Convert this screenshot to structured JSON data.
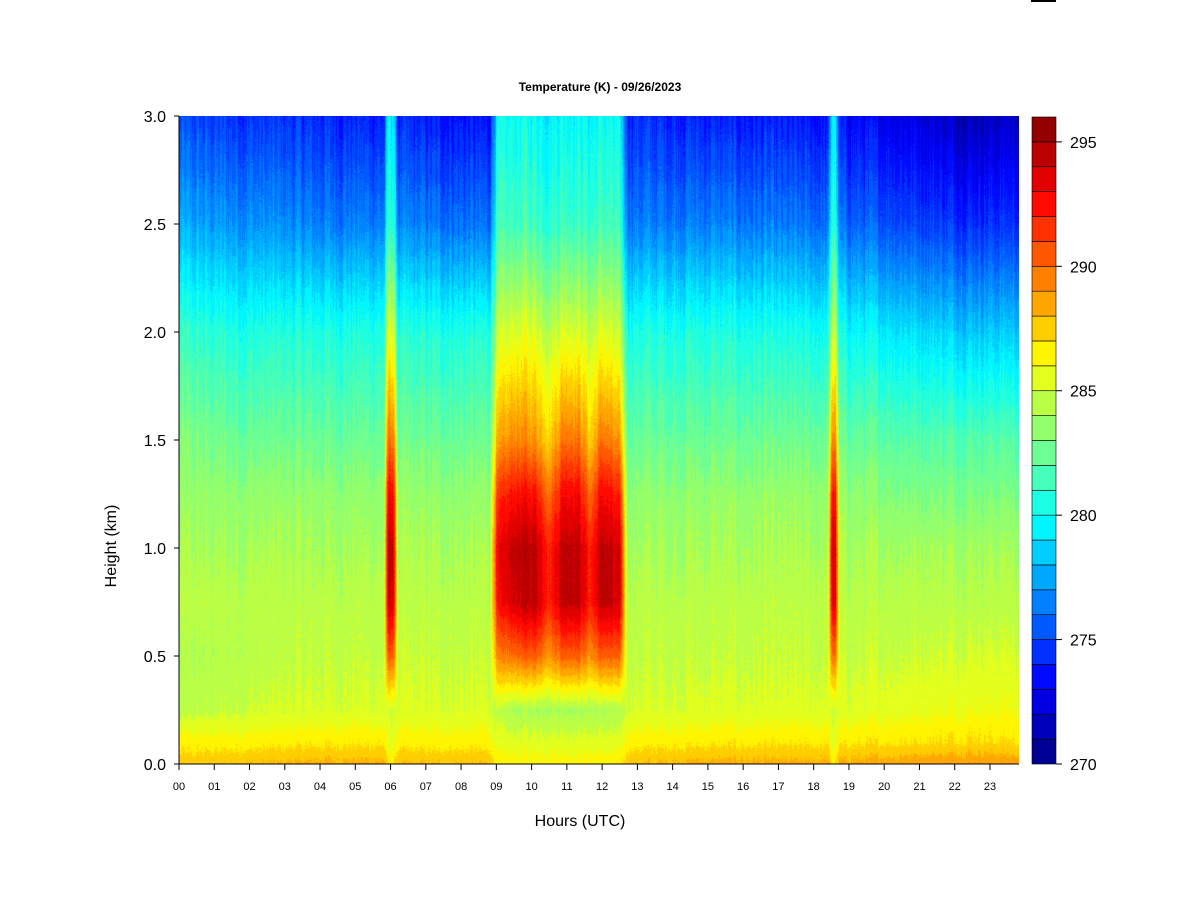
{
  "chart_data": {
    "type": "heatmap",
    "title": "Temperature (K) - 09/26/2023",
    "xlabel": "Hours (UTC)",
    "ylabel": "Height (km)",
    "xlim": [
      0,
      23.83
    ],
    "ylim": [
      0,
      3.0
    ],
    "x_ticks": [
      "00",
      "01",
      "02",
      "03",
      "04",
      "05",
      "06",
      "07",
      "08",
      "09",
      "10",
      "11",
      "12",
      "13",
      "14",
      "15",
      "16",
      "17",
      "18",
      "19",
      "20",
      "21",
      "22",
      "23"
    ],
    "y_ticks": [
      "0.0",
      "0.5",
      "1.0",
      "1.5",
      "2.0",
      "2.5",
      "3.0"
    ],
    "colorbar": {
      "min": 270,
      "max": 296,
      "step": 1,
      "ticks": [
        "270",
        "275",
        "280",
        "285",
        "290",
        "295"
      ]
    },
    "heights_km": [
      0,
      0.1,
      0.25,
      0.5,
      0.75,
      1.0,
      1.25,
      1.5,
      2.0,
      2.5,
      3.0
    ],
    "profiles": [
      {
        "hour": 0.0,
        "temps": [
          287.5,
          286.5,
          284.5,
          284.0,
          284.5,
          284.0,
          283.5,
          283.0,
          281.0,
          277.5,
          275.0
        ]
      },
      {
        "hour": 2.0,
        "temps": [
          288.0,
          286.5,
          285.0,
          284.5,
          284.5,
          284.0,
          283.5,
          282.5,
          280.5,
          277.0,
          274.5
        ]
      },
      {
        "hour": 4.0,
        "temps": [
          288.3,
          286.8,
          285.2,
          284.8,
          284.5,
          284.0,
          283.5,
          282.5,
          280.5,
          276.5,
          274.3
        ]
      },
      {
        "hour": 5.8,
        "temps": [
          288.3,
          286.8,
          285.2,
          284.8,
          284.5,
          284.0,
          283.5,
          282.5,
          280.5,
          276.5,
          274.0
        ]
      },
      {
        "hour": 5.92,
        "temps": [
          287.0,
          285.5,
          285.0,
          290.5,
          294.0,
          294.5,
          293.0,
          290.0,
          285.5,
          281.0,
          279.5
        ]
      },
      {
        "hour": 6.06,
        "temps": [
          287.0,
          285.5,
          285.0,
          290.5,
          294.0,
          294.5,
          293.0,
          290.0,
          285.5,
          281.0,
          279.5
        ]
      },
      {
        "hour": 6.2,
        "temps": [
          288.0,
          286.5,
          285.2,
          284.8,
          284.5,
          284.0,
          283.5,
          282.5,
          280.5,
          276.5,
          274.0
        ]
      },
      {
        "hour": 8.8,
        "temps": [
          288.0,
          286.5,
          285.2,
          284.8,
          284.5,
          284.0,
          283.5,
          282.5,
          280.5,
          276.0,
          273.5
        ]
      },
      {
        "hour": 9.0,
        "temps": [
          286.5,
          285.5,
          284.5,
          289.0,
          292.0,
          292.5,
          291.0,
          288.0,
          284.5,
          281.0,
          279.5
        ]
      },
      {
        "hour": 9.5,
        "temps": [
          286.5,
          285.5,
          284.0,
          290.0,
          294.0,
          294.5,
          292.5,
          289.5,
          285.5,
          281.5,
          280.0
        ]
      },
      {
        "hour": 10.1,
        "temps": [
          286.5,
          285.5,
          284.0,
          290.5,
          294.5,
          294.5,
          292.5,
          289.0,
          285.5,
          281.5,
          280.0
        ]
      },
      {
        "hour": 10.5,
        "temps": [
          286.5,
          285.5,
          284.0,
          289.0,
          292.0,
          292.0,
          290.0,
          287.5,
          284.5,
          281.0,
          279.5
        ]
      },
      {
        "hour": 10.9,
        "temps": [
          286.5,
          285.5,
          284.0,
          290.5,
          294.5,
          294.5,
          293.0,
          290.0,
          285.5,
          281.5,
          280.0
        ]
      },
      {
        "hour": 11.3,
        "temps": [
          286.5,
          285.5,
          284.0,
          290.5,
          294.5,
          294.5,
          293.0,
          290.0,
          285.5,
          281.5,
          280.0
        ]
      },
      {
        "hour": 11.65,
        "temps": [
          286.5,
          285.5,
          284.0,
          289.0,
          292.0,
          292.0,
          290.0,
          287.5,
          284.5,
          281.0,
          279.5
        ]
      },
      {
        "hour": 12.0,
        "temps": [
          286.5,
          285.5,
          284.0,
          290.5,
          294.5,
          294.5,
          293.0,
          290.0,
          285.5,
          281.5,
          280.0
        ]
      },
      {
        "hour": 12.5,
        "temps": [
          286.5,
          285.5,
          284.0,
          290.0,
          293.5,
          293.5,
          291.5,
          288.5,
          284.5,
          281.0,
          279.5
        ]
      },
      {
        "hour": 12.7,
        "temps": [
          288.0,
          286.5,
          285.2,
          284.8,
          284.5,
          284.0,
          283.5,
          282.5,
          280.5,
          276.5,
          274.5
        ]
      },
      {
        "hour": 15.0,
        "temps": [
          288.3,
          286.8,
          285.3,
          284.8,
          284.5,
          284.0,
          283.5,
          282.5,
          280.5,
          276.5,
          274.0
        ]
      },
      {
        "hour": 18.4,
        "temps": [
          288.3,
          286.8,
          285.3,
          284.8,
          284.5,
          284.0,
          283.5,
          282.5,
          280.0,
          276.0,
          273.5
        ]
      },
      {
        "hour": 18.5,
        "temps": [
          287.0,
          285.5,
          285.0,
          290.0,
          293.5,
          294.0,
          292.5,
          289.5,
          285.0,
          281.0,
          279.5
        ]
      },
      {
        "hour": 18.6,
        "temps": [
          287.0,
          285.5,
          285.0,
          290.0,
          293.5,
          294.0,
          292.5,
          289.5,
          285.0,
          281.0,
          279.5
        ]
      },
      {
        "hour": 18.72,
        "temps": [
          288.3,
          286.8,
          285.3,
          284.8,
          284.5,
          284.0,
          283.5,
          282.5,
          280.0,
          276.0,
          273.5
        ]
      },
      {
        "hour": 21.0,
        "temps": [
          288.8,
          287.0,
          285.8,
          285.0,
          284.5,
          284.0,
          283.0,
          282.0,
          279.0,
          275.0,
          272.5
        ]
      },
      {
        "hour": 22.5,
        "temps": [
          289.0,
          287.2,
          286.0,
          285.2,
          284.5,
          284.0,
          283.0,
          282.0,
          278.5,
          274.5,
          271.5
        ]
      },
      {
        "hour": 23.83,
        "temps": [
          288.8,
          287.0,
          286.0,
          285.2,
          284.5,
          284.0,
          283.0,
          282.0,
          278.5,
          274.5,
          272.0
        ]
      }
    ]
  }
}
